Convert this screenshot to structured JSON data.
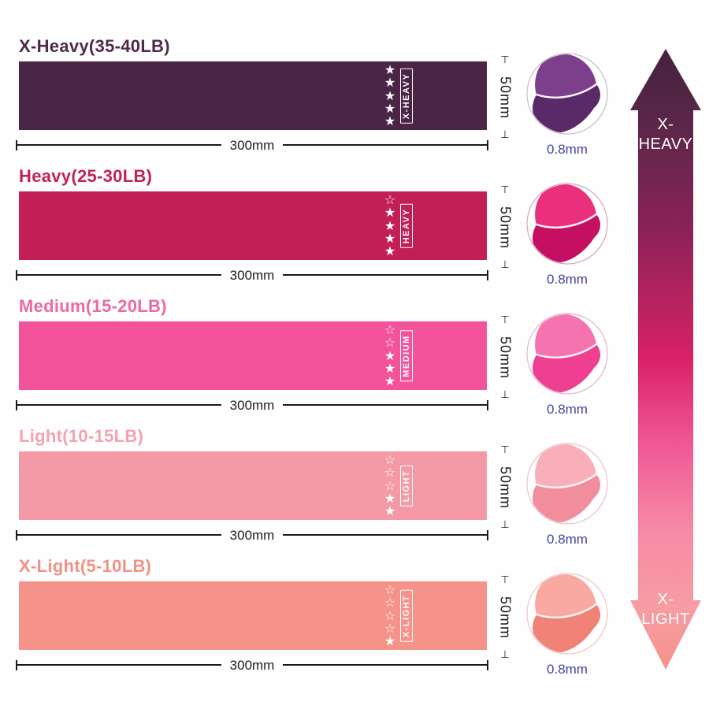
{
  "dimensions": {
    "width_label": "300mm",
    "height_label": "50mm",
    "thickness_label": "0.8mm"
  },
  "style_colors": {
    "dimension_color": "#1a1a1a",
    "thickness_label_color": "#4646a0",
    "star_color": "#ffffff",
    "crease_highlight": "#fdf3f6"
  },
  "star_glyphs": {
    "filled": "★",
    "empty": "☆"
  },
  "bands": [
    {
      "title": "X-Heavy(35-40LB)",
      "label": "X-HEAVY",
      "stars_filled": 5,
      "stars_total": 5,
      "band_color": "#4a2545",
      "title_color": "#4f2b49",
      "fold_light": "#7b3f8c",
      "fold_dark": "#5a2a68",
      "circle_border": "#c9bac6"
    },
    {
      "title": "Heavy(25-30LB)",
      "label": "HEAVY",
      "stars_filled": 4,
      "stars_total": 5,
      "band_color": "#c11f56",
      "title_color": "#c22157",
      "fold_light": "#ea2f7d",
      "fold_dark": "#c50f60",
      "circle_border": "#d9a0ba"
    },
    {
      "title": "Medium(15-20LB)",
      "label": "MEDIUM",
      "stars_filled": 3,
      "stars_total": 5,
      "band_color": "#f2539b",
      "title_color": "#ec69a4",
      "fold_light": "#f573ae",
      "fold_dark": "#ee3f92",
      "circle_border": "#e3b2ca"
    },
    {
      "title": "Light(10-15LB)",
      "label": "LIGHT",
      "stars_filled": 2,
      "stars_total": 5,
      "band_color": "#f49aa7",
      "title_color": "#f2a3af",
      "fold_light": "#f9afba",
      "fold_dark": "#f28d9d",
      "circle_border": "#e8c2ca"
    },
    {
      "title": "X-Light(5-10LB)",
      "label": "X-LIGHT",
      "stars_filled": 1,
      "stars_total": 5,
      "band_color": "#f5938a",
      "title_color": "#f19287",
      "fold_light": "#f9a9a1",
      "fold_dark": "#f18277",
      "circle_border": "#ecc4c0"
    }
  ],
  "scale_arrow": {
    "top_line1": "X-",
    "top_line2": "HEAVY",
    "bottom_line1": "X-",
    "bottom_line2": "LIGHT",
    "gradient": [
      {
        "offset": 0,
        "color": "#44223e"
      },
      {
        "offset": 0.12,
        "color": "#5a2749"
      },
      {
        "offset": 0.3,
        "color": "#8e2257"
      },
      {
        "offset": 0.5,
        "color": "#d92168"
      },
      {
        "offset": 0.63,
        "color": "#ef5595"
      },
      {
        "offset": 0.78,
        "color": "#f78ba6"
      },
      {
        "offset": 0.9,
        "color": "#f79ca3"
      },
      {
        "offset": 1,
        "color": "#f4938a"
      }
    ]
  }
}
